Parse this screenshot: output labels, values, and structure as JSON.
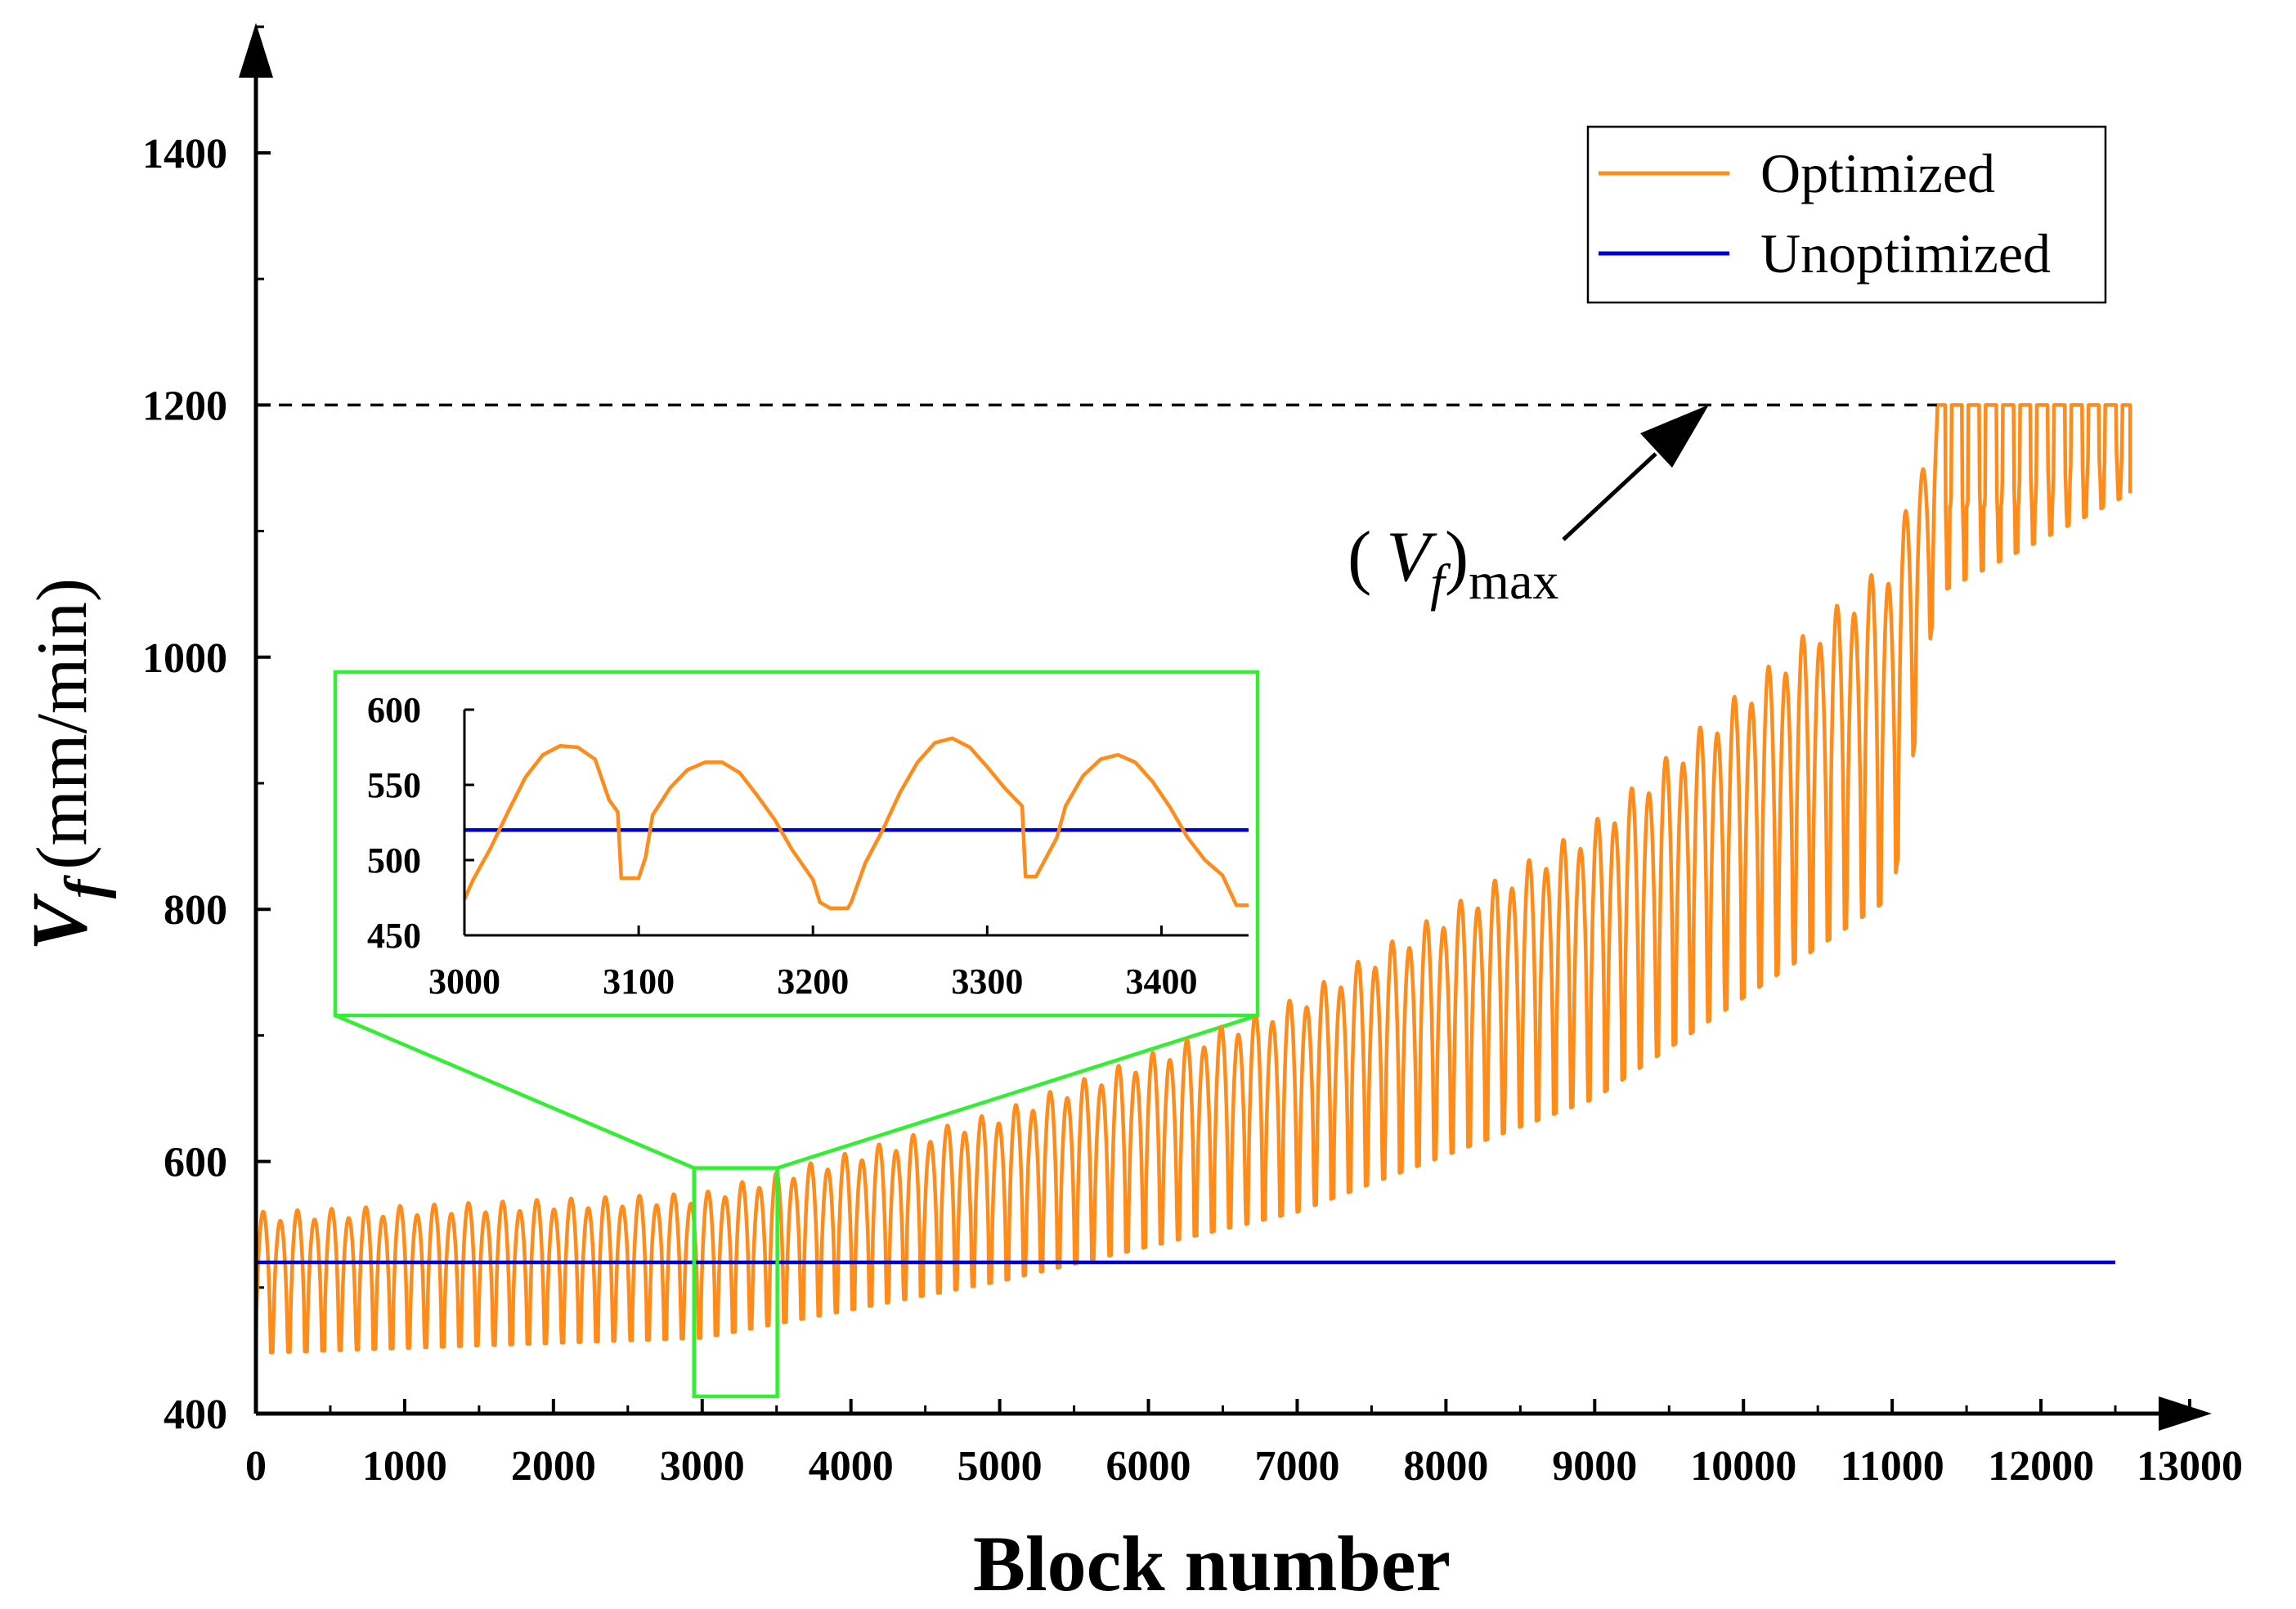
{
  "chart_data": {
    "type": "line",
    "xlabel": "Block number",
    "ylabel_main": "V",
    "ylabel_sub": "f",
    "ylabel_unit": "(mm/min)",
    "xlim": [
      0,
      13000
    ],
    "ylim": [
      400,
      1500
    ],
    "xticks": [
      0,
      1000,
      2000,
      3000,
      4000,
      5000,
      6000,
      7000,
      8000,
      9000,
      10000,
      11000,
      12000,
      13000
    ],
    "yticks": [
      400,
      600,
      800,
      1000,
      1200,
      1400
    ],
    "series": [
      {
        "name": "Optimized",
        "color": "#ff8c1a",
        "description_points": {
          "x": [
            0,
            3000,
            5000,
            7000,
            9000,
            11000,
            11300,
            12600
          ],
          "upper": [
            560,
            575,
            640,
            730,
            870,
            1080,
            1200,
            1200
          ],
          "lower": [
            448,
            460,
            505,
            560,
            650,
            810,
            1050,
            1130
          ]
        }
      },
      {
        "name": "Unoptimized",
        "color": "#0000cc",
        "x": [
          0,
          12500
        ],
        "y": [
          520,
          520
        ]
      }
    ],
    "reference_line": {
      "y": 1200,
      "x_end": 11300,
      "style": "dashed",
      "color": "#000000"
    },
    "annotation": {
      "label_main": "V",
      "label_sub": "f",
      "label_tail": "max",
      "paren_open": "(",
      "paren_close": ")"
    },
    "legend": {
      "position": "top-right",
      "entries": [
        "Optimized",
        "Unoptimized"
      ]
    },
    "zoom_box": {
      "x": [
        3000,
        3450
      ],
      "y": [
        450,
        600
      ],
      "color": "#33ee33"
    },
    "inset": {
      "xlim": [
        3000,
        3450
      ],
      "ylim": [
        450,
        600
      ],
      "xticks": [
        3000,
        3100,
        3200,
        3300,
        3400
      ],
      "yticks": [
        450,
        500,
        550,
        600
      ],
      "optimized": {
        "x": [
          3000,
          3005,
          3015,
          3025,
          3035,
          3045,
          3055,
          3065,
          3075,
          3083,
          3088,
          3090,
          3100,
          3104,
          3108,
          3118,
          3128,
          3138,
          3148,
          3158,
          3168,
          3178,
          3188,
          3200,
          3204,
          3210,
          3220,
          3222,
          3230,
          3240,
          3250,
          3260,
          3270,
          3280,
          3290,
          3300,
          3310,
          3320,
          3322,
          3328,
          3340,
          3345,
          3355,
          3365,
          3375,
          3385,
          3395,
          3405,
          3415,
          3425,
          3435,
          3443,
          3450
        ],
        "y": [
          474,
          487,
          508,
          532,
          555,
          570,
          576,
          575,
          567,
          540,
          532,
          488,
          488,
          502,
          530,
          548,
          560,
          565,
          565,
          558,
          543,
          527,
          507,
          487,
          472,
          468,
          468,
          472,
          498,
          520,
          545,
          565,
          578,
          581,
          575,
          562,
          548,
          536,
          489,
          489,
          515,
          536,
          556,
          567,
          570,
          565,
          552,
          535,
          515,
          500,
          490,
          470,
          470
        ]
      },
      "unoptimized": {
        "y": 520
      }
    }
  }
}
